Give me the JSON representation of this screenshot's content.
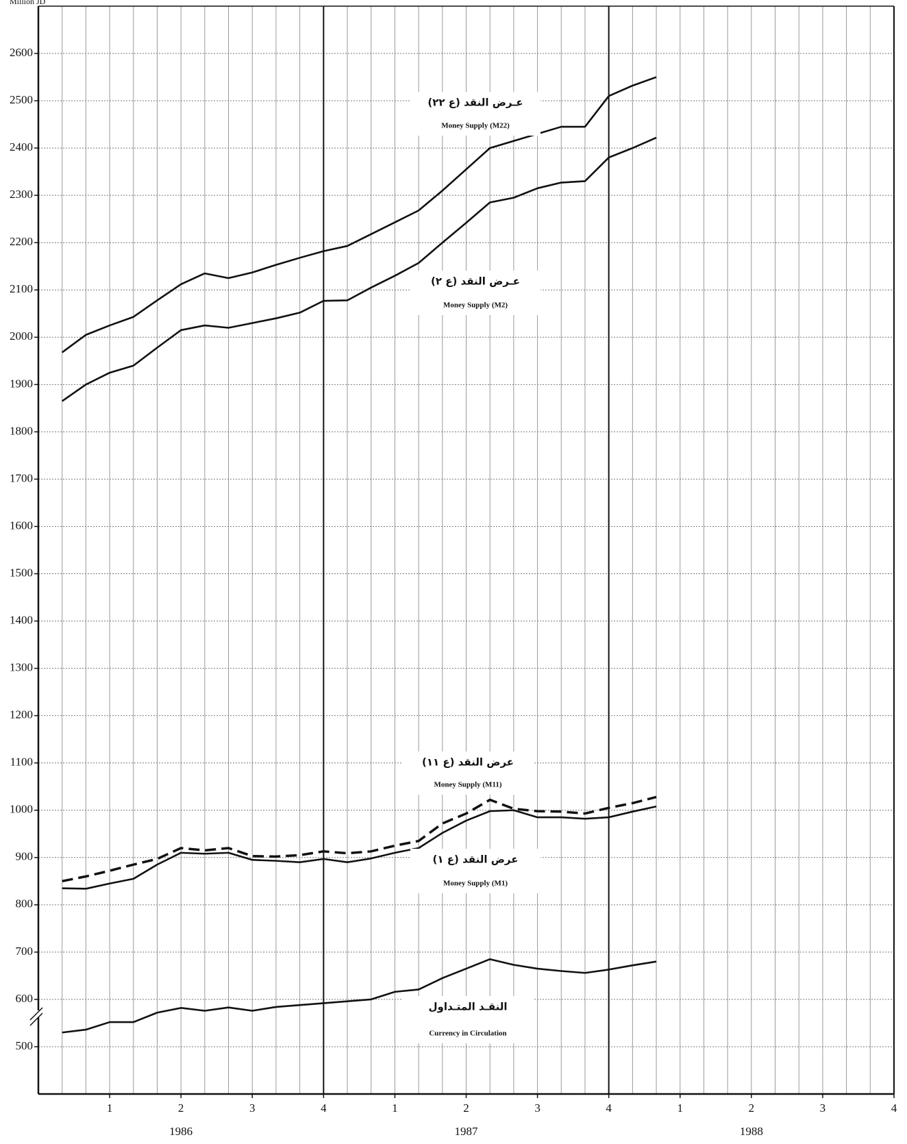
{
  "chart_data": {
    "type": "line",
    "y_label": "Million JD",
    "x": [
      1,
      2,
      3,
      4,
      5,
      6,
      7,
      8,
      9,
      10,
      11,
      12,
      13,
      14,
      15,
      16,
      17,
      18,
      19,
      20,
      21,
      22,
      23,
      24,
      25,
      26
    ],
    "xlim": [
      0,
      36
    ],
    "xticks": [
      {
        "value": 3,
        "label": "1"
      },
      {
        "value": 6,
        "label": "2"
      },
      {
        "value": 9,
        "label": "3"
      },
      {
        "value": 12,
        "label": "4"
      },
      {
        "value": 15,
        "label": "1"
      },
      {
        "value": 18,
        "label": "2"
      },
      {
        "value": 21,
        "label": "3"
      },
      {
        "value": 24,
        "label": "4"
      },
      {
        "value": 27,
        "label": "1"
      },
      {
        "value": 30,
        "label": "2"
      },
      {
        "value": 33,
        "label": "3"
      },
      {
        "value": 36,
        "label": "4"
      }
    ],
    "x_grid": [
      1,
      2,
      3,
      4,
      5,
      6,
      7,
      8,
      9,
      10,
      11,
      12,
      13,
      14,
      15,
      16,
      17,
      18,
      19,
      20,
      21,
      22,
      23,
      24,
      25,
      26,
      27,
      28,
      29,
      30,
      31,
      32,
      33,
      34,
      35
    ],
    "x_groups": [
      {
        "label": "1986",
        "start": 0,
        "end": 12
      },
      {
        "label": "1987",
        "start": 12,
        "end": 24
      },
      {
        "label": "1988",
        "start": 24,
        "end": 36
      }
    ],
    "ylim": [
      400,
      2700
    ],
    "yticks": [
      500,
      600,
      700,
      800,
      900,
      1000,
      1100,
      1200,
      1300,
      1400,
      1500,
      1600,
      1700,
      1800,
      1900,
      2000,
      2100,
      2200,
      2300,
      2400,
      2500,
      2600
    ],
    "grid": true,
    "series": [
      {
        "name": "Money Supply (M22)",
        "name_ar": "عـرض النقد (ع ٢٢)",
        "color": "#111111",
        "dashed": false,
        "values": [
          1968,
          2005,
          2025,
          2043,
          2078,
          2112,
          2135,
          2125,
          2137,
          2153,
          2168,
          2182,
          2193,
          2218,
          2243,
          2268,
          2310,
          2355,
          2400,
          2415,
          2430,
          2445,
          2445,
          2510,
          2532,
          2550
        ]
      },
      {
        "name": "Money Supply (M2)",
        "name_ar": "عـرض النقد (ع ٢)",
        "color": "#111111",
        "dashed": false,
        "values": [
          1865,
          1900,
          1925,
          1940,
          1978,
          2015,
          2025,
          2020,
          2030,
          2040,
          2052,
          2077,
          2078,
          2105,
          2130,
          2157,
          2200,
          2242,
          2285,
          2295,
          2315,
          2327,
          2330,
          2380,
          2400,
          2422
        ]
      },
      {
        "name": "Money Supply (M11)",
        "name_ar": "عرض النقد (ع ١١)",
        "color": "#111111",
        "dashed": true,
        "values": [
          850,
          860,
          872,
          885,
          897,
          920,
          915,
          920,
          903,
          902,
          905,
          913,
          909,
          913,
          925,
          935,
          972,
          993,
          1022,
          1003,
          998,
          997,
          993,
          1005,
          1015,
          1028
        ]
      },
      {
        "name": "Money Supply (M1)",
        "name_ar": "عرض النقد (ع ١)",
        "color": "#111111",
        "dashed": false,
        "values": [
          835,
          834,
          845,
          855,
          885,
          910,
          908,
          910,
          895,
          893,
          890,
          897,
          890,
          898,
          910,
          920,
          952,
          978,
          998,
          1000,
          985,
          985,
          982,
          985,
          997,
          1008
        ]
      },
      {
        "name": "Currency in Circulation",
        "name_ar": "النقـد المتـداول",
        "color": "#111111",
        "dashed": false,
        "values": [
          530,
          536,
          552,
          552,
          572,
          582,
          576,
          583,
          576,
          584,
          588,
          592,
          596,
          600,
          616,
          621,
          645,
          665,
          685,
          673,
          665,
          660,
          656,
          663,
          672,
          680
        ]
      }
    ]
  }
}
